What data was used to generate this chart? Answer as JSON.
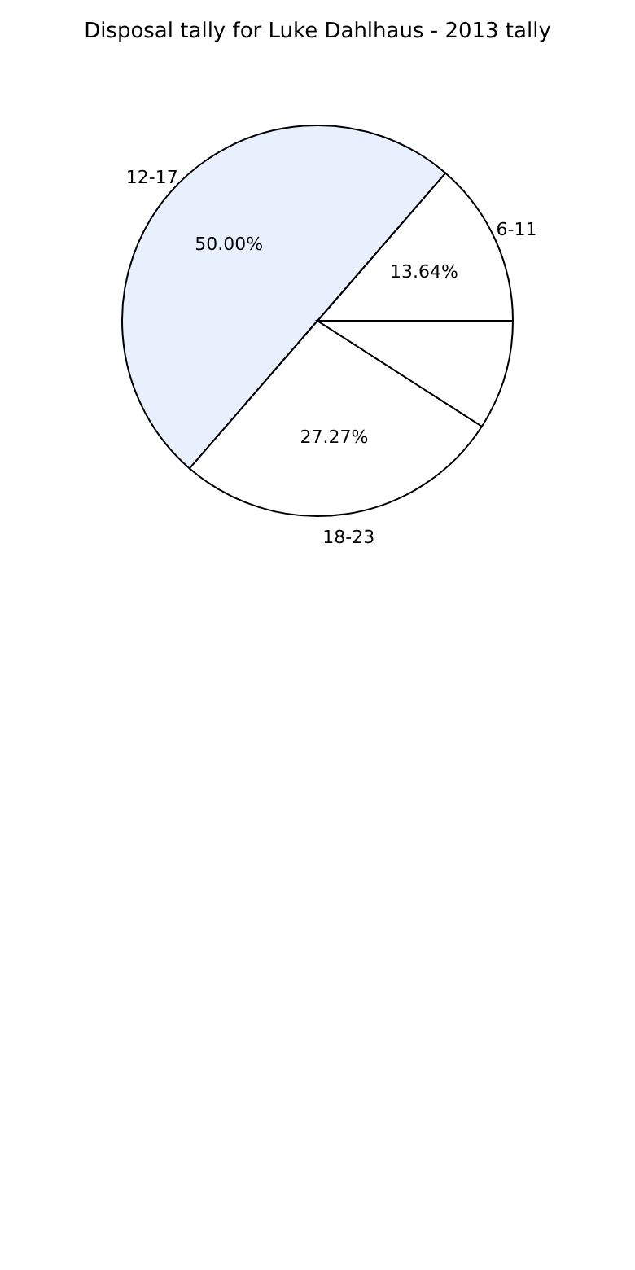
{
  "chart_data": {
    "type": "pie",
    "title": "Disposal tally for Luke Dahlhaus - 2013 tally",
    "categories": [
      "6-11",
      "12-17",
      "18-23",
      null
    ],
    "values": [
      13.64,
      50.0,
      27.27,
      9.09
    ],
    "colors": [
      "#ffffff",
      "#e8effd",
      "#ffffff",
      "#ffffff"
    ],
    "value_labels": [
      "13.64%",
      "50.00%",
      "27.27%",
      null
    ],
    "legend": false
  }
}
